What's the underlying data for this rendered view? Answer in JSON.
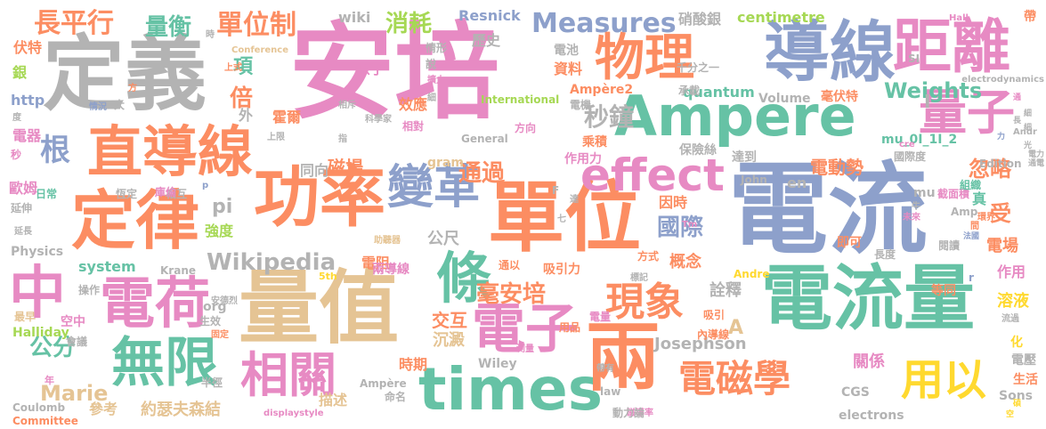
{
  "palette": {
    "pink": "#e78ac3",
    "blue": "#8da0cb",
    "green": "#66c2a5",
    "orange": "#fc8d62",
    "lime": "#a6d854",
    "yellow": "#ffd92f",
    "tan": "#e5c494",
    "gray": "#b3b3b3"
  },
  "words": [
    "安培",
    "電流",
    "定義",
    "導線",
    "單位",
    "量值",
    "Ampere",
    "電流量",
    "功率",
    "times",
    "兩",
    "直導線",
    "定律",
    "距離",
    "物理",
    "條",
    "電荷",
    "電子",
    "effect",
    "變革",
    "無限",
    "量子",
    "中",
    "相關",
    "現象",
    "電磁學",
    "用以",
    "長平行",
    "Measures",
    "單位制",
    "Wikipedia",
    "秒鐘",
    "毫安培",
    "根",
    "通過",
    "國際",
    "Weights",
    "量衡",
    "消耗",
    "歷史",
    "公分",
    "Marie",
    "倍",
    "項",
    "電動勢",
    "交互",
    "pi",
    "忽略",
    "受",
    "電場",
    "磁場",
    "沉澱",
    "約瑟夫森結",
    "參考",
    "Josephson",
    "A",
    "Resnick",
    "centimetre",
    "硝酸銀",
    "wiki",
    "詮釋",
    "公尺",
    "概念",
    "因時",
    "電阻",
    "溶液",
    "時期",
    "關係",
    "Physics",
    "system",
    "Halliday",
    "歐姆",
    "強度",
    "描述",
    "Krane",
    "Wiley",
    "quantum",
    "伏特",
    "銀",
    "電器",
    "http",
    "原子",
    "資料",
    "電池",
    "方向",
    "化",
    "Ampère2",
    "Volume",
    "效應",
    "霍爾",
    "保險絲",
    "乘積",
    "Edition",
    "CGS",
    "Ampère",
    "Coulomb",
    "Committee",
    "Sons",
    "electrons",
    "International",
    "General",
    "John",
    "gram",
    "Andre",
    "org",
    "law",
    "真",
    "作用",
    "I",
    "外",
    "同向",
    "承載",
    "毫伏特",
    "即可",
    "吸引力",
    "生活",
    "電壓",
    "Conference",
    "電機",
    "上式",
    "情形",
    "說",
    "擴大",
    "細",
    "相斥",
    "相對",
    "上限",
    "內導線",
    "吸引",
    "空中",
    "最早",
    "會議",
    "固定",
    "年",
    "兩導線",
    "助聽器",
    "作用力",
    "達",
    "達到",
    "帶有",
    "電量",
    "用品",
    "通以",
    "方式",
    "長度",
    "等同",
    "閱讀",
    "國際度",
    "截面積",
    "測量",
    "千分之一",
    "恆定",
    "日常",
    "延伸",
    "操作",
    "度",
    "半徑",
    "延長",
    "秒",
    "5th",
    "生效",
    "流過",
    "磁導率",
    "displaystyle",
    "mu_0I_1I_2",
    "en",
    "r",
    "SI",
    "Hall",
    "electrodynamics",
    "mu",
    "p",
    "F",
    "Tm",
    "Amp",
    "未來",
    "組織",
    "牛",
    "法國",
    "安德烈",
    "空",
    "標記",
    "相互",
    "情況",
    "科學家",
    "命名",
    "動力論",
    "庫倫",
    "間",
    "方",
    "大",
    "七",
    "通",
    "碩",
    "cre",
    "Andr",
    "環界",
    "帶",
    "時",
    "力",
    "長",
    "光",
    "細",
    "細",
    "電力",
    "通電",
    "指",
    "曲",
    "出",
    "父"
  ]
}
